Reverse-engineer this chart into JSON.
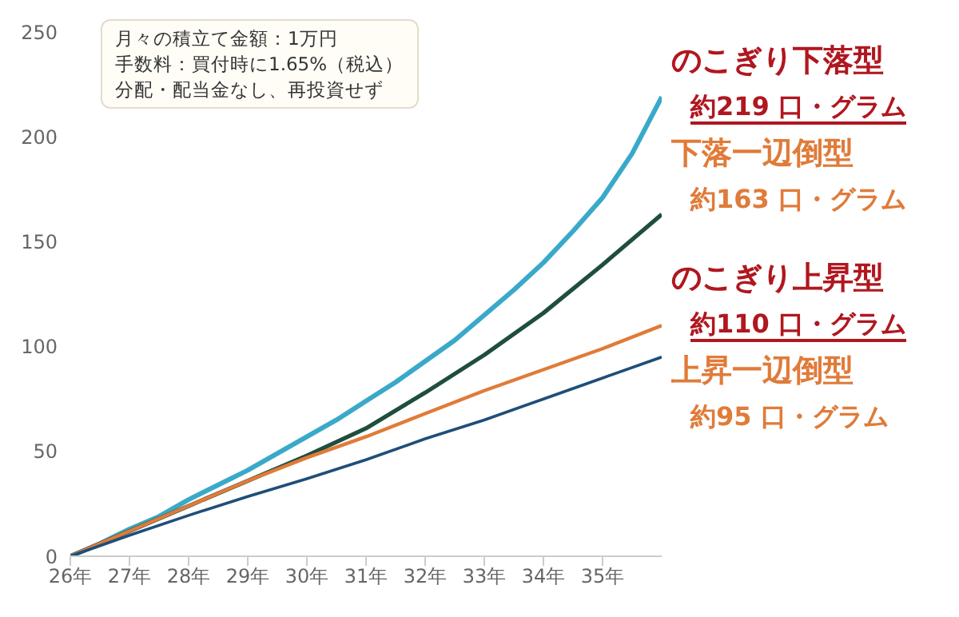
{
  "chart_data": {
    "type": "line",
    "xlim": [
      26,
      36
    ],
    "xticks": [
      {
        "value": 26,
        "label": "26年"
      },
      {
        "value": 27,
        "label": "27年"
      },
      {
        "value": 28,
        "label": "28年"
      },
      {
        "value": 29,
        "label": "29年"
      },
      {
        "value": 30,
        "label": "30年"
      },
      {
        "value": 31,
        "label": "31年"
      },
      {
        "value": 32,
        "label": "32年"
      },
      {
        "value": 33,
        "label": "33年"
      },
      {
        "value": 34,
        "label": "34年"
      },
      {
        "value": 35,
        "label": "35年"
      }
    ],
    "ylim": [
      0,
      250
    ],
    "yticks": [
      0,
      50,
      100,
      150,
      200,
      250
    ],
    "marker": "none",
    "line_style": "solid",
    "series": [
      {
        "color": "#3aa9c9",
        "x": [
          26,
          26.5,
          27,
          27.5,
          28,
          28.5,
          29,
          29.5,
          30,
          30.5,
          31,
          31.5,
          32,
          32.5,
          33,
          33.5,
          34,
          34.5,
          35,
          35.5,
          36
        ],
        "values": [
          0,
          6,
          13,
          19,
          27,
          34,
          41,
          49,
          57,
          65,
          74,
          83,
          93,
          103,
          115,
          127,
          140,
          155,
          171,
          192,
          219
        ]
      },
      {
        "color": "#1f4e3d",
        "x": [
          26,
          27,
          28,
          29,
          30,
          31,
          32,
          33,
          34,
          35,
          36
        ],
        "values": [
          0,
          12,
          24,
          36,
          48,
          61,
          78,
          96,
          116,
          139,
          163
        ]
      },
      {
        "color": "#e07b39",
        "x": [
          26,
          27,
          28,
          29,
          30,
          31,
          32,
          33,
          34,
          35,
          36
        ],
        "values": [
          0,
          12,
          24,
          36,
          47,
          57,
          68,
          79,
          89,
          99,
          110
        ]
      },
      {
        "color": "#1f4e79",
        "x": [
          26,
          27,
          28,
          29,
          30,
          31,
          32,
          33,
          34,
          35,
          36
        ],
        "values": [
          0,
          10,
          19.5,
          28.5,
          37,
          46,
          56,
          65,
          75,
          85,
          95
        ]
      }
    ],
    "annotations": [
      "月々の積立て金額：1万円",
      "手数料：買付時に1.65%（税込）",
      "分配・配当金なし、再投資せず",
      "のこぎり下落型",
      "約219 口・グラム",
      "下落一辺倒型",
      "約163 口・グラム",
      "のこぎり上昇型",
      "約110 口・グラム",
      "上昇一辺倒型",
      "約95 口・グラム"
    ]
  }
}
